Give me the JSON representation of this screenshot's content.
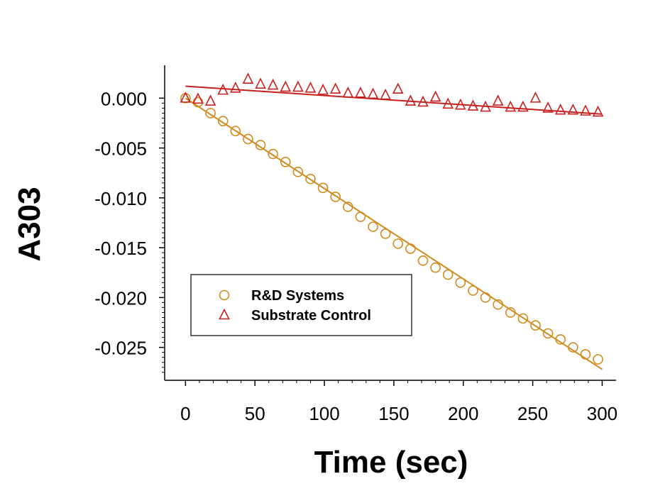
{
  "chart_data": {
    "type": "scatter",
    "title": "",
    "xlabel": "Time (sec)",
    "ylabel": "A303",
    "xlim": [
      -15,
      310
    ],
    "ylim": [
      -0.0283,
      0.0033
    ],
    "xticks": [
      0,
      50,
      100,
      150,
      200,
      250,
      300
    ],
    "xtick_labels": [
      "0",
      "50",
      "100",
      "150",
      "200",
      "250",
      "300"
    ],
    "yticks": [
      0.0,
      -0.005,
      -0.01,
      -0.015,
      -0.02,
      -0.025
    ],
    "ytick_labels": [
      "0.000",
      "-0.005",
      "-0.010",
      "-0.015",
      "-0.020",
      "-0.025"
    ],
    "legend_position": "lower-left",
    "grid": false,
    "series": [
      {
        "name": "R&D Systems",
        "marker": "circle",
        "color": "#D08A1E",
        "x": [
          0,
          9,
          18,
          27,
          36,
          45,
          54,
          63,
          72,
          81,
          90,
          99,
          108,
          117,
          126,
          135,
          144,
          153,
          162,
          171,
          180,
          189,
          198,
          207,
          216,
          225,
          234,
          243,
          252,
          261,
          270,
          279,
          288,
          297
        ],
        "y": [
          0.0,
          -0.0004,
          -0.0015,
          -0.0023,
          -0.0033,
          -0.0041,
          -0.0047,
          -0.0056,
          -0.0064,
          -0.0074,
          -0.0081,
          -0.009,
          -0.0099,
          -0.0109,
          -0.0119,
          -0.0129,
          -0.0136,
          -0.0146,
          -0.0151,
          -0.0163,
          -0.017,
          -0.0177,
          -0.0185,
          -0.0193,
          -0.02,
          -0.0207,
          -0.0215,
          -0.0221,
          -0.0228,
          -0.0236,
          -0.0242,
          -0.025,
          -0.0257,
          -0.0262
        ],
        "fit_line": {
          "x": [
            0,
            300
          ],
          "y": [
            0.0,
            -0.0272
          ]
        }
      },
      {
        "name": "Substrate Control",
        "marker": "triangle",
        "color": "#C8201E",
        "x": [
          0,
          9,
          18,
          27,
          36,
          45,
          54,
          63,
          72,
          81,
          90,
          99,
          108,
          117,
          126,
          135,
          144,
          153,
          162,
          171,
          180,
          189,
          198,
          207,
          216,
          225,
          234,
          243,
          252,
          261,
          270,
          279,
          288,
          297
        ],
        "y": [
          0.0,
          -0.0001,
          -0.0003,
          0.0008,
          0.001,
          0.0019,
          0.0014,
          0.0013,
          0.0011,
          0.0011,
          0.001,
          0.0008,
          0.0009,
          0.0005,
          0.0005,
          0.0004,
          0.0003,
          0.0009,
          -0.0003,
          -0.0004,
          0.0001,
          -0.0006,
          -0.0007,
          -0.0008,
          -0.0009,
          -0.0003,
          -0.0009,
          -0.0009,
          0.0,
          -0.001,
          -0.0012,
          -0.0012,
          -0.0013,
          -0.0014
        ],
        "fit_line": {
          "x": [
            0,
            300
          ],
          "y": [
            0.0012,
            -0.0016
          ]
        }
      }
    ]
  }
}
